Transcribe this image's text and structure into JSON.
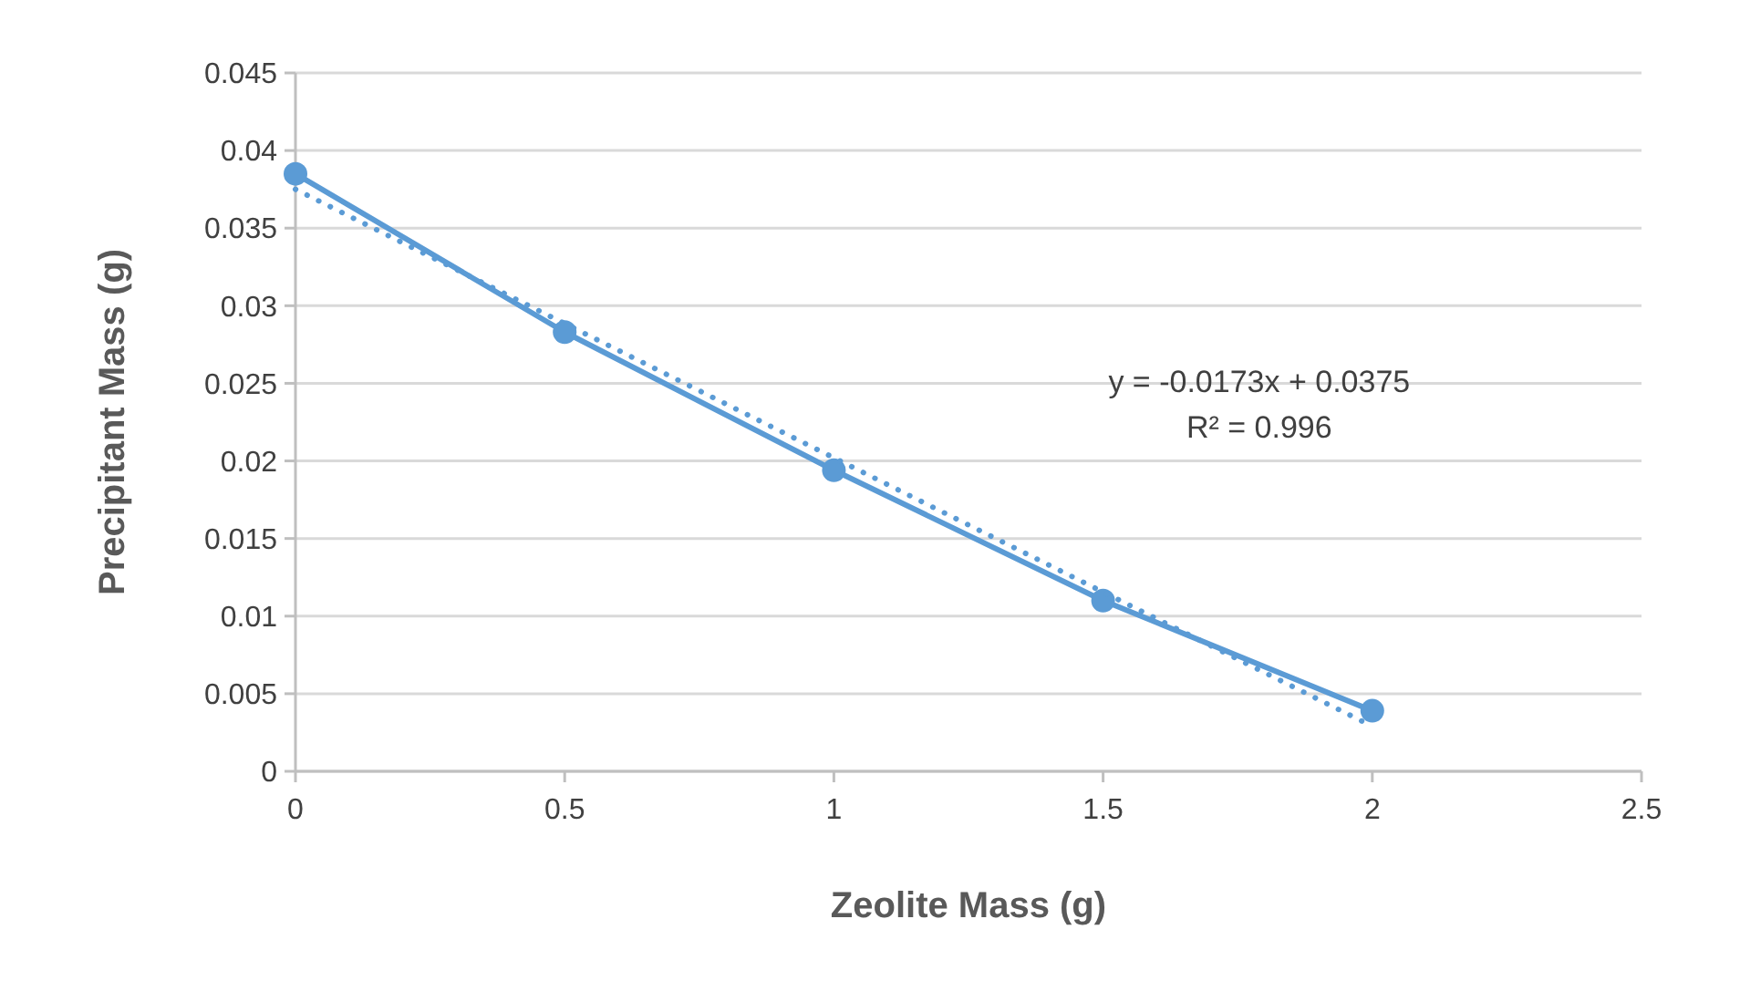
{
  "chart_data": {
    "type": "line",
    "xlabel": "Zeolite Mass (g)",
    "ylabel": "Precipitant Mass (g)",
    "x": [
      0,
      0.5,
      1,
      1.5,
      2
    ],
    "series": [
      {
        "color": "#5b9bd5",
        "values": [
          0.0385,
          0.0283,
          0.0194,
          0.011,
          0.0039
        ],
        "marker": "circle",
        "line_style": "solid"
      },
      {
        "type": "line",
        "color": "#5b9bd5",
        "x": [
          0,
          2
        ],
        "values": [
          0.0375,
          0.0029
        ],
        "marker": "none",
        "line_style": "dotted"
      }
    ],
    "xlim": [
      0,
      2.5
    ],
    "xticks": [
      0,
      0.5,
      1,
      1.5,
      2,
      2.5
    ],
    "ylim": [
      0,
      0.045
    ],
    "yticks": [
      0,
      0.005,
      0.01,
      0.015,
      0.02,
      0.025,
      0.03,
      0.035,
      0.04,
      0.045
    ],
    "grid": "y",
    "annotations": [
      "y = -0.0173x + 0.0375",
      "R² = 0.996"
    ]
  }
}
